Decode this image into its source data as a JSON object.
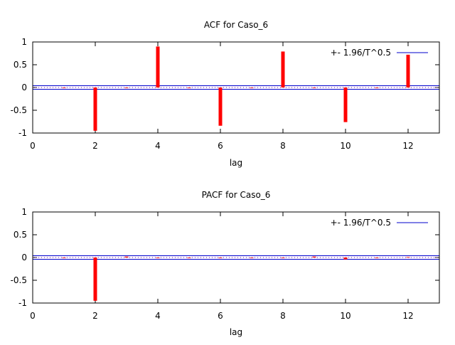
{
  "chart_data": [
    {
      "type": "bar",
      "title": "ACF for Caso_6",
      "xlabel": "lag",
      "ylabel": "",
      "xlim": [
        0,
        13
      ],
      "ylim": [
        -1,
        1
      ],
      "x_ticks": [
        "0",
        "2",
        "4",
        "6",
        "8",
        "10",
        "12"
      ],
      "y_ticks": [
        "1",
        "0.5",
        "0",
        "-0.5",
        "-1"
      ],
      "x_tick_values": [
        0,
        2,
        4,
        6,
        8,
        10,
        12
      ],
      "y_tick_values": [
        1,
        0.5,
        0,
        -0.5,
        -1
      ],
      "legend": {
        "label": "+- 1.96/T^0.5",
        "position": "top-right"
      },
      "confidence_band": 0.04,
      "series": [
        {
          "lags": [
            1,
            2,
            3,
            4,
            5,
            6,
            7,
            8,
            9,
            10,
            11,
            12
          ],
          "values": [
            0.0,
            -0.95,
            0.0,
            0.9,
            0.0,
            -0.84,
            0.0,
            0.79,
            0.0,
            -0.76,
            0.0,
            0.72
          ]
        }
      ],
      "colors": {
        "bars": "#ff0000",
        "band": "#0000cc",
        "zero": "#8000a0"
      }
    },
    {
      "type": "bar",
      "title": "PACF for Caso_6",
      "xlabel": "lag",
      "ylabel": "",
      "xlim": [
        0,
        13
      ],
      "ylim": [
        -1,
        1
      ],
      "x_ticks": [
        "0",
        "2",
        "4",
        "6",
        "8",
        "10",
        "12"
      ],
      "y_ticks": [
        "1",
        "0.5",
        "0",
        "-0.5",
        "-1"
      ],
      "x_tick_values": [
        0,
        2,
        4,
        6,
        8,
        10,
        12
      ],
      "y_tick_values": [
        1,
        0.5,
        0,
        -0.5,
        -1
      ],
      "legend": {
        "label": "+- 1.96/T^0.5",
        "position": "top-right"
      },
      "confidence_band": 0.04,
      "series": [
        {
          "lags": [
            1,
            2,
            3,
            4,
            5,
            6,
            7,
            8,
            9,
            10,
            11,
            12
          ],
          "values": [
            0.0,
            -0.95,
            0.02,
            0.0,
            0.0,
            0.0,
            0.0,
            0.0,
            0.02,
            -0.04,
            0.0,
            0.01
          ]
        }
      ],
      "colors": {
        "bars": "#ff0000",
        "band": "#0000cc",
        "zero": "#8000a0"
      }
    }
  ]
}
